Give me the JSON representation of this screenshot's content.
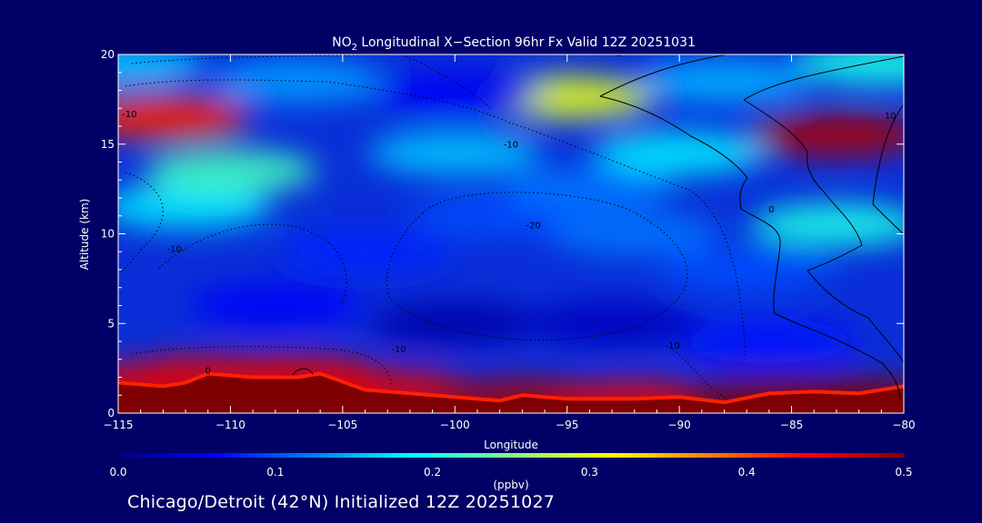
{
  "chart_data": {
    "type": "heatmap",
    "title_prefix": "NO",
    "title_subscript": "2",
    "title_suffix": " Longitudinal X−Section 96hr  Fx Valid 12Z 20251031",
    "xlabel": "Longitude",
    "ylabel": "Altitude (km)",
    "xlim": [
      -115,
      -80
    ],
    "ylim": [
      0,
      20
    ],
    "x_ticks": [
      -115,
      -110,
      -105,
      -100,
      -95,
      -90,
      -85,
      -80
    ],
    "x_tick_labels": [
      "−115",
      "−110",
      "−105",
      "−100",
      "−95",
      "−90",
      "−85",
      "−80"
    ],
    "y_ticks": [
      0,
      5,
      10,
      15,
      20
    ],
    "y_tick_labels": [
      "0",
      "5",
      "10",
      "15",
      "20"
    ],
    "colorbar": {
      "label": "(ppbv)",
      "range": [
        0.0,
        0.5
      ],
      "ticks": [
        0.0,
        0.1,
        0.2,
        0.3,
        0.4,
        0.5
      ],
      "tick_labels": [
        "0.0",
        "0.1",
        "0.2",
        "0.3",
        "0.4",
        "0.5"
      ]
    },
    "colormap": [
      "#00007f",
      "#0000ff",
      "#0080ff",
      "#00ffff",
      "#80ff80",
      "#ffff00",
      "#ff8000",
      "#ff0000",
      "#800000"
    ],
    "terrain_profile": {
      "lon": [
        -115,
        -113,
        -112,
        -111,
        -109,
        -107,
        -106,
        -104,
        -102,
        -100,
        -98,
        -97,
        -95,
        -92,
        -90,
        -88,
        -86,
        -84,
        -82,
        -80
      ],
      "alt": [
        1.7,
        1.5,
        1.7,
        2.2,
        2.0,
        2.0,
        2.2,
        1.3,
        1.1,
        0.9,
        0.7,
        1.0,
        0.8,
        0.8,
        0.9,
        0.6,
        1.1,
        1.2,
        1.1,
        1.5
      ]
    },
    "concentration_field": [
      {
        "lon": -115,
        "alt": 1.5,
        "value": 0.45
      },
      {
        "lon": -111,
        "alt": 2.0,
        "value": 0.45
      },
      {
        "lon": -107,
        "alt": 2.0,
        "value": 0.45
      },
      {
        "lon": -103,
        "alt": 1.2,
        "value": 0.45
      },
      {
        "lon": -97,
        "alt": 0.7,
        "value": 0.48
      },
      {
        "lon": -92,
        "alt": 0.6,
        "value": 0.45
      },
      {
        "lon": -86,
        "alt": 0.8,
        "value": 0.5
      },
      {
        "lon": -82,
        "alt": 0.8,
        "value": 0.5
      },
      {
        "lon": -100,
        "alt": 5.0,
        "value": 0.02
      },
      {
        "lon": -93,
        "alt": 5.0,
        "value": 0.03
      },
      {
        "lon": -108,
        "alt": 6.0,
        "value": 0.06
      },
      {
        "lon": -86,
        "alt": 4.0,
        "value": 0.07
      },
      {
        "lon": -104,
        "alt": 9.0,
        "value": 0.08
      },
      {
        "lon": -98,
        "alt": 11.0,
        "value": 0.1
      },
      {
        "lon": -112,
        "alt": 11.5,
        "value": 0.18
      },
      {
        "lon": -94,
        "alt": 12.5,
        "value": 0.12
      },
      {
        "lon": -83,
        "alt": 10.5,
        "value": 0.2
      },
      {
        "lon": -110,
        "alt": 13.5,
        "value": 0.22
      },
      {
        "lon": -100,
        "alt": 14.5,
        "value": 0.16
      },
      {
        "lon": -90,
        "alt": 14.5,
        "value": 0.18
      },
      {
        "lon": -113,
        "alt": 16.5,
        "value": 0.42
      },
      {
        "lon": -83,
        "alt": 15.5,
        "value": 0.48
      },
      {
        "lon": -95,
        "alt": 17.6,
        "value": 0.3
      },
      {
        "lon": -100,
        "alt": 17.8,
        "value": 0.06
      },
      {
        "lon": -107,
        "alt": 18.5,
        "value": 0.14
      },
      {
        "lon": -88,
        "alt": 18.5,
        "value": 0.15
      },
      {
        "lon": -115,
        "alt": 19.5,
        "value": 0.16
      },
      {
        "lon": -81,
        "alt": 19.5,
        "value": 0.2
      },
      {
        "lon": -92,
        "alt": 10.0,
        "value": 0.12
      },
      {
        "lon": -87,
        "alt": 8.0,
        "value": 0.1
      }
    ],
    "contour_labels": [
      {
        "text": "-10",
        "lon": -114.5,
        "alt": 16.5
      },
      {
        "text": "-10",
        "lon": -112.5,
        "alt": 9.0
      },
      {
        "text": "-10",
        "lon": -97.5,
        "alt": 14.8
      },
      {
        "text": "-20",
        "lon": -96.5,
        "alt": 10.3
      },
      {
        "text": "-10",
        "lon": -102.5,
        "alt": 3.4
      },
      {
        "text": "-10",
        "lon": -90.3,
        "alt": 3.6
      },
      {
        "text": "0",
        "lon": -111.0,
        "alt": 2.2
      },
      {
        "text": "0",
        "lon": -92.7,
        "alt": 19.9
      },
      {
        "text": "0",
        "lon": -85.9,
        "alt": 11.2
      },
      {
        "text": "10",
        "lon": -80.6,
        "alt": 16.4
      }
    ]
  },
  "caption": "Chicago/Detroit (42°N) Initialized 12Z 20251027"
}
